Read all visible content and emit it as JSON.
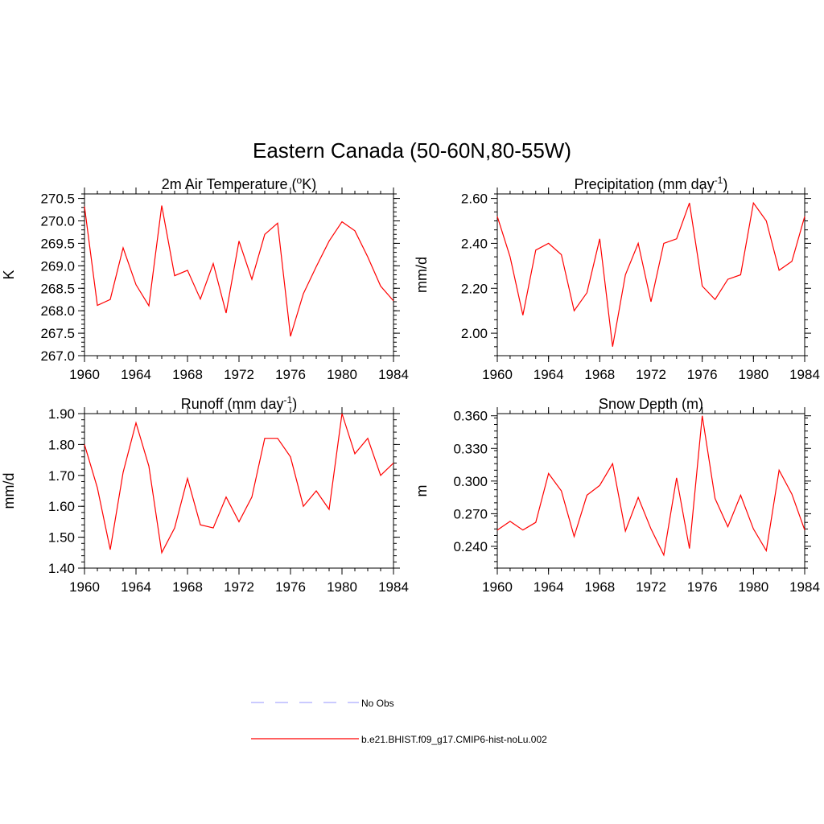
{
  "main_title": "Eastern Canada (50-60N,80-55W)",
  "chart_data": [
    {
      "type": "line",
      "title": "2m Air Temperature (",
      "title_sup": "o",
      "title_after": "K)",
      "ylabel": "K",
      "x": [
        1960,
        1961,
        1962,
        1963,
        1964,
        1965,
        1966,
        1967,
        1968,
        1969,
        1970,
        1971,
        1972,
        1973,
        1974,
        1975,
        1976,
        1977,
        1978,
        1979,
        1980,
        1981,
        1982,
        1983,
        1984
      ],
      "xlim": [
        1960,
        1984
      ],
      "xticks": [
        1960,
        1964,
        1968,
        1972,
        1976,
        1980,
        1984
      ],
      "xtick_labels": [
        "1960",
        "1964",
        "1968",
        "1972",
        "1976",
        "1980",
        "1984"
      ],
      "ylim": [
        267.0,
        270.6
      ],
      "yticks": [
        267.0,
        267.5,
        268.0,
        268.5,
        269.0,
        269.5,
        270.0,
        270.5
      ],
      "ytick_labels": [
        "267.0",
        "267.5",
        "268.0",
        "268.5",
        "269.0",
        "269.5",
        "270.0",
        "270.5"
      ],
      "yminor": 0.1,
      "series": [
        {
          "color": "#ff0000",
          "values": [
            270.32,
            268.12,
            268.25,
            269.4,
            268.58,
            268.11,
            270.34,
            268.78,
            268.9,
            268.26,
            269.05,
            267.95,
            269.55,
            268.7,
            269.7,
            269.95,
            267.43,
            268.38,
            268.98,
            269.55,
            269.98,
            269.78,
            269.2,
            268.55,
            268.22
          ]
        }
      ]
    },
    {
      "type": "line",
      "title": "Precipitation (mm day",
      "title_sup": "-1",
      "title_after": ")",
      "ylabel": "mm/d",
      "x": [
        1960,
        1961,
        1962,
        1963,
        1964,
        1965,
        1966,
        1967,
        1968,
        1969,
        1970,
        1971,
        1972,
        1973,
        1974,
        1975,
        1976,
        1977,
        1978,
        1979,
        1980,
        1981,
        1982,
        1983,
        1984
      ],
      "xlim": [
        1960,
        1984
      ],
      "xticks": [
        1960,
        1964,
        1968,
        1972,
        1976,
        1980,
        1984
      ],
      "xtick_labels": [
        "1960",
        "1964",
        "1968",
        "1972",
        "1976",
        "1980",
        "1984"
      ],
      "ylim": [
        1.9,
        2.62
      ],
      "yticks": [
        2.0,
        2.2,
        2.4,
        2.6
      ],
      "ytick_labels": [
        "2.00",
        "2.20",
        "2.40",
        "2.60"
      ],
      "yminor": 0.04,
      "series": [
        {
          "color": "#ff0000",
          "values": [
            2.52,
            2.34,
            2.08,
            2.37,
            2.4,
            2.35,
            2.1,
            2.18,
            2.42,
            1.94,
            2.26,
            2.4,
            2.14,
            2.4,
            2.42,
            2.58,
            2.21,
            2.15,
            2.24,
            2.26,
            2.58,
            2.5,
            2.28,
            2.32,
            2.52
          ]
        }
      ]
    },
    {
      "type": "line",
      "title": "Runoff (mm day",
      "title_sup": "-1",
      "title_after": ")",
      "ylabel": "mm/d",
      "x": [
        1960,
        1961,
        1962,
        1963,
        1964,
        1965,
        1966,
        1967,
        1968,
        1969,
        1970,
        1971,
        1972,
        1973,
        1974,
        1975,
        1976,
        1977,
        1978,
        1979,
        1980,
        1981,
        1982,
        1983,
        1984
      ],
      "xlim": [
        1960,
        1984
      ],
      "xticks": [
        1960,
        1964,
        1968,
        1972,
        1976,
        1980,
        1984
      ],
      "xtick_labels": [
        "1960",
        "1964",
        "1968",
        "1972",
        "1976",
        "1980",
        "1984"
      ],
      "ylim": [
        1.4,
        1.9
      ],
      "yticks": [
        1.4,
        1.5,
        1.6,
        1.7,
        1.8,
        1.9
      ],
      "ytick_labels": [
        "1.40",
        "1.50",
        "1.60",
        "1.70",
        "1.80",
        "1.90"
      ],
      "yminor": 0.02,
      "series": [
        {
          "color": "#ff0000",
          "values": [
            1.8,
            1.66,
            1.46,
            1.71,
            1.87,
            1.73,
            1.45,
            1.53,
            1.69,
            1.54,
            1.53,
            1.63,
            1.55,
            1.63,
            1.82,
            1.82,
            1.76,
            1.6,
            1.65,
            1.59,
            1.9,
            1.77,
            1.82,
            1.7,
            1.74
          ]
        }
      ]
    },
    {
      "type": "line",
      "title": "Snow Depth (m)",
      "title_sup": "",
      "title_after": "",
      "ylabel": "m",
      "x": [
        1960,
        1961,
        1962,
        1963,
        1964,
        1965,
        1966,
        1967,
        1968,
        1969,
        1970,
        1971,
        1972,
        1973,
        1974,
        1975,
        1976,
        1977,
        1978,
        1979,
        1980,
        1981,
        1982,
        1983,
        1984
      ],
      "xlim": [
        1960,
        1984
      ],
      "xticks": [
        1960,
        1964,
        1968,
        1972,
        1976,
        1980,
        1984
      ],
      "xtick_labels": [
        "1960",
        "1964",
        "1968",
        "1972",
        "1976",
        "1980",
        "1984"
      ],
      "ylim": [
        0.22,
        0.362
      ],
      "yticks": [
        0.24,
        0.27,
        0.3,
        0.33,
        0.36
      ],
      "ytick_labels": [
        "0.240",
        "0.270",
        "0.300",
        "0.330",
        "0.360"
      ],
      "yminor": 0.006,
      "series": [
        {
          "color": "#ff0000",
          "values": [
            0.255,
            0.263,
            0.255,
            0.262,
            0.307,
            0.291,
            0.249,
            0.287,
            0.296,
            0.316,
            0.254,
            0.285,
            0.256,
            0.232,
            0.303,
            0.238,
            0.36,
            0.284,
            0.258,
            0.287,
            0.256,
            0.236,
            0.31,
            0.288,
            0.255
          ]
        }
      ]
    }
  ],
  "legend": {
    "items": [
      {
        "label": "No Obs",
        "color": "#aaaaff",
        "style": "dashed"
      },
      {
        "label": "b.e21.BHIST.f09_g17.CMIP6-hist-noLu.002",
        "color": "#ff0000",
        "style": "solid"
      }
    ]
  }
}
